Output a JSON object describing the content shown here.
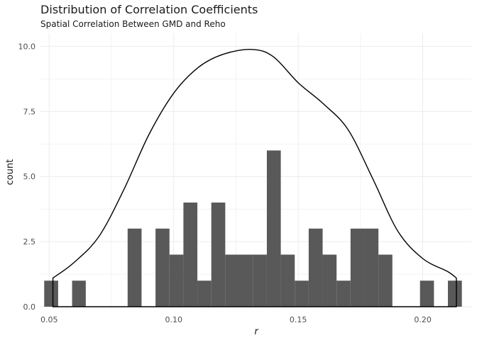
{
  "chart_data": {
    "type": "histogram",
    "title": "Distribution of Correlation Coefficients",
    "subtitle": "Spatial Correlation Between GMD and Reho",
    "xlabel": "r",
    "ylabel": "count",
    "xlim": [
      0.0465,
      0.2195
    ],
    "ylim": [
      0,
      10.5
    ],
    "x_ticks": [
      0.05,
      0.1,
      0.15,
      0.2
    ],
    "x_tick_labels": [
      "0.05",
      "0.10",
      "0.15",
      "0.20"
    ],
    "y_ticks": [
      0.0,
      2.5,
      5.0,
      7.5,
      10.0
    ],
    "y_tick_labels": [
      "0.0",
      "2.5",
      "5.0",
      "7.5",
      "10.0"
    ],
    "grid": true,
    "bar_color": "#595959",
    "bins": [
      {
        "x0": 0.048,
        "x1": 0.0536,
        "count": 1
      },
      {
        "x0": 0.0592,
        "x1": 0.0647,
        "count": 1
      },
      {
        "x0": 0.0815,
        "x1": 0.0871,
        "count": 3
      },
      {
        "x0": 0.0927,
        "x1": 0.0983,
        "count": 3
      },
      {
        "x0": 0.0983,
        "x1": 0.1039,
        "count": 2
      },
      {
        "x0": 0.1039,
        "x1": 0.1095,
        "count": 4
      },
      {
        "x0": 0.1095,
        "x1": 0.1151,
        "count": 1
      },
      {
        "x0": 0.1151,
        "x1": 0.1207,
        "count": 4
      },
      {
        "x0": 0.1207,
        "x1": 0.1263,
        "count": 2
      },
      {
        "x0": 0.1263,
        "x1": 0.1319,
        "count": 2
      },
      {
        "x0": 0.1319,
        "x1": 0.1374,
        "count": 2
      },
      {
        "x0": 0.1374,
        "x1": 0.143,
        "count": 6
      },
      {
        "x0": 0.143,
        "x1": 0.1486,
        "count": 2
      },
      {
        "x0": 0.1486,
        "x1": 0.1542,
        "count": 1
      },
      {
        "x0": 0.1542,
        "x1": 0.1598,
        "count": 3
      },
      {
        "x0": 0.1598,
        "x1": 0.1654,
        "count": 2
      },
      {
        "x0": 0.1654,
        "x1": 0.171,
        "count": 1
      },
      {
        "x0": 0.171,
        "x1": 0.1766,
        "count": 3
      },
      {
        "x0": 0.1766,
        "x1": 0.1822,
        "count": 3
      },
      {
        "x0": 0.1822,
        "x1": 0.1878,
        "count": 2
      },
      {
        "x0": 0.1989,
        "x1": 0.2045,
        "count": 1
      },
      {
        "x0": 0.2101,
        "x1": 0.2157,
        "count": 1
      }
    ],
    "density_curve": {
      "x": [
        0.0515,
        0.06,
        0.07,
        0.08,
        0.09,
        0.1,
        0.11,
        0.12,
        0.1315,
        0.14,
        0.15,
        0.16,
        0.17,
        0.18,
        0.19,
        0.2,
        0.21,
        0.2135
      ],
      "y": [
        1.1,
        1.7,
        2.7,
        4.5,
        6.6,
        8.2,
        9.2,
        9.7,
        9.88,
        9.6,
        8.6,
        7.8,
        6.8,
        4.9,
        2.9,
        1.85,
        1.35,
        1.1
      ]
    }
  }
}
